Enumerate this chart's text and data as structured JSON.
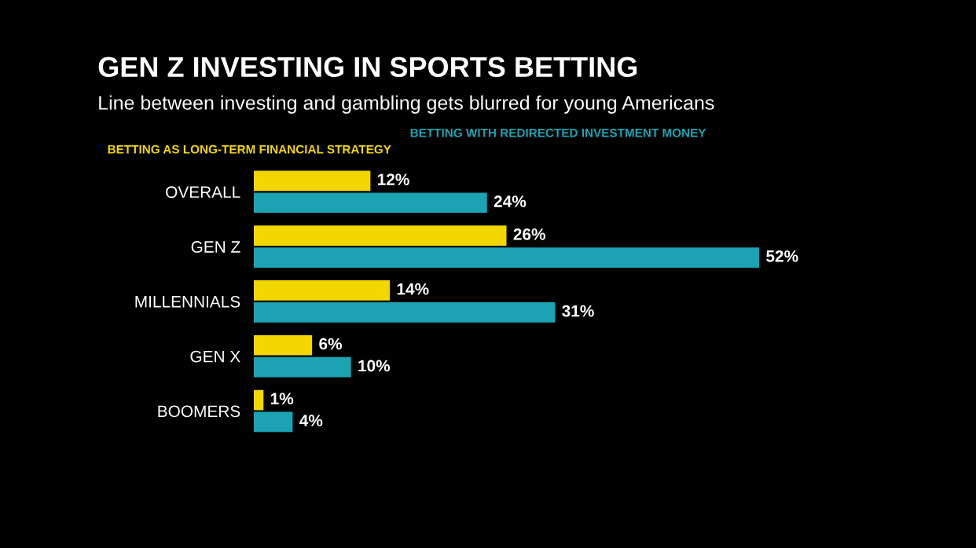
{
  "chart_data": {
    "type": "bar",
    "orientation": "horizontal",
    "title": "GEN Z INVESTING IN SPORTS BETTING",
    "subtitle": "Line between investing and gambling gets blurred for young Americans",
    "categories": [
      "OVERALL",
      "GEN Z",
      "MILLENNIALS",
      "GEN X",
      "BOOMERS"
    ],
    "series": [
      {
        "name": "BETTING AS LONG-TERM FINANCIAL STRATEGY",
        "color": "#f2d600",
        "values": [
          12,
          26,
          14,
          6,
          1
        ],
        "value_labels": [
          "12%",
          "26%",
          "14%",
          "6%",
          "1%"
        ]
      },
      {
        "name": "BETTING WITH REDIRECTED INVESTMENT MONEY",
        "color": "#1ba3b3",
        "values": [
          24,
          52,
          31,
          10,
          4
        ],
        "value_labels": [
          "24%",
          "52%",
          "31%",
          "10%",
          "4%"
        ]
      }
    ]
  }
}
